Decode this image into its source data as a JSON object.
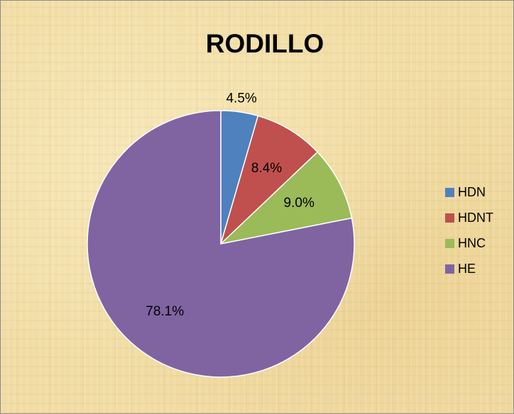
{
  "chart_data": {
    "type": "pie",
    "title": "RODILLO",
    "legend_position": "right",
    "categories": [
      "HDN",
      "HDNT",
      "HNC",
      "HE"
    ],
    "values": [
      4.5,
      8.4,
      9.0,
      78.1
    ],
    "data_labels": [
      "4.5%",
      "8.4%",
      "9.0%",
      "78.1%"
    ],
    "colors": [
      "#4f81bd",
      "#c0504d",
      "#9bbb59",
      "#8064a2"
    ]
  }
}
